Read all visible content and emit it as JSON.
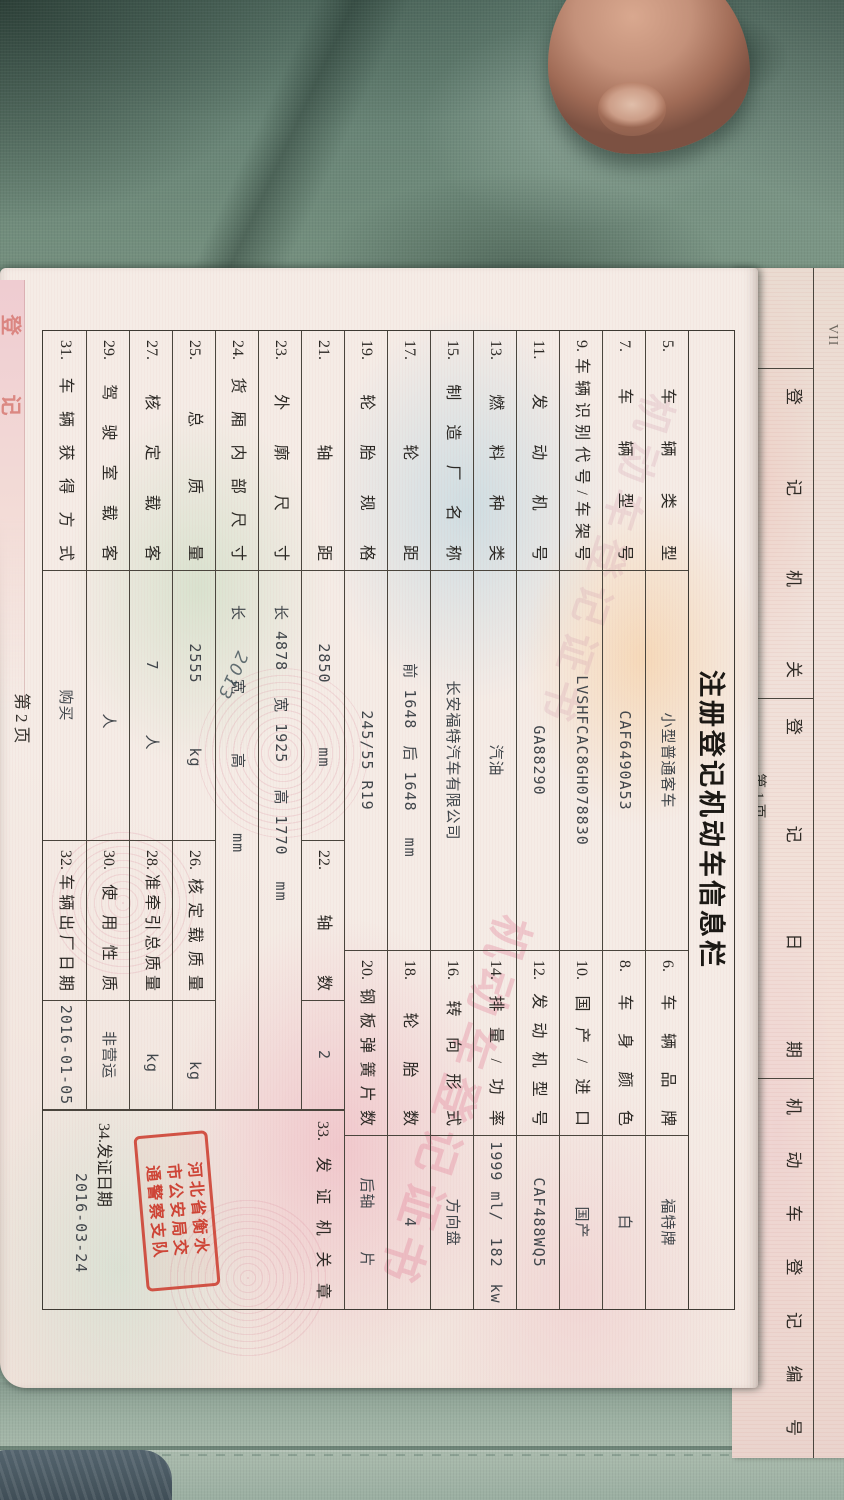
{
  "photo": {
    "colors": {
      "fabric": "#7d988b",
      "page": "#f3e9e3",
      "table_line": "#403d37",
      "seal_red": "#c9382b",
      "watermark_pink": "#e58ba4"
    },
    "page1_edge": {
      "corner_mark": "VII",
      "headers": [
        "登记机关",
        "登记日期",
        "机动车登记编号"
      ],
      "page_label": "第1页"
    },
    "page_edge_strip": {
      "chars": [
        "登",
        "记"
      ]
    },
    "page2": {
      "title": "注册登记机动车信息栏",
      "page_label": "第2页",
      "watermark_text": "机动车登记证书",
      "handwritten_mark": "2013",
      "rows": [
        [
          "5.车辆类型",
          "小型普通客车",
          "6.车辆品牌",
          "福特牌"
        ],
        [
          "7.车辆型号",
          "CAF6490A53",
          "8.车身颜色",
          "白"
        ],
        [
          "9.车辆识别代号/车架号",
          "LVSHFCAC8GH078830",
          "10.国产/进口",
          "国产"
        ],
        [
          "11.发动机号",
          "GA88290",
          "12.发动机型号",
          "CAF488WQ5"
        ],
        [
          "13.燃料种类",
          "汽油",
          "14.排量/功率",
          "1999 ml/　182　kw"
        ],
        [
          "15.制造厂名称",
          "长安福特汽车有限公司",
          "16.转向形式",
          "方向盘"
        ],
        [
          "17.轮距",
          "前 1648　后 1648　 mm",
          "18.轮胎数",
          "4"
        ],
        [
          "19.轮胎规格",
          "245/55 R19",
          "20.钢板弹簧片数",
          "后轴　　 片"
        ],
        [
          "21.轴距",
          "2850　　　　mm",
          "22.轴数",
          "2"
        ],
        [
          "23.外廓尺寸",
          "长 4878　 宽 1925　 高 1770　 mm"
        ],
        [
          "24.货厢内部尺寸",
          "长　　　 宽　　　 高　　　　mm"
        ],
        [
          "25.总质量",
          "2555　　　　kg",
          "26.核定载质量",
          "　　kg"
        ],
        [
          "27.核定载客",
          "7　　　　人",
          "28.准牵引总质量",
          "　kg"
        ],
        [
          "29.驾驶室载客",
          "　　人",
          "30.使用性质",
          "非营运"
        ],
        [
          "31.车辆获得方式",
          "购买",
          "32.车辆出厂日期",
          "2016-01-05"
        ]
      ],
      "issue_column": {
        "header": "33.发证机关章",
        "seal_lines": [
          "河北省衡水",
          "市公安局交",
          "通警察支队"
        ],
        "date_label": "34.发证日期",
        "date_value": "2016-03-24"
      }
    }
  }
}
